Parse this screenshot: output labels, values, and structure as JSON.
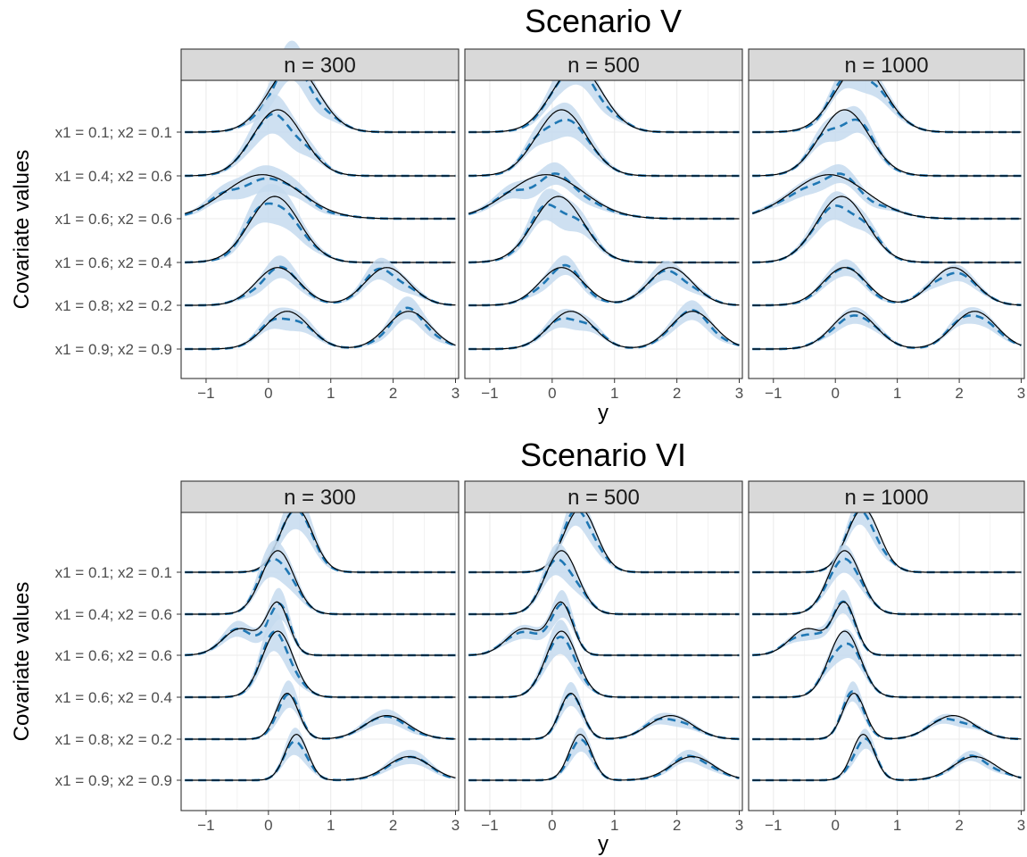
{
  "chart_data": [
    {
      "type": "area",
      "title": "Scenario V",
      "xlabel": "y",
      "ylabel": "Covariate values",
      "xlim": [
        -1.4,
        3.05
      ],
      "xticks": [
        -1,
        0,
        1,
        2,
        3
      ],
      "xtick_labels": [
        "−1",
        "0",
        "1",
        "2",
        "3"
      ],
      "panels": [
        "n = 300",
        "n = 500",
        "n = 1000"
      ],
      "rows": [
        "x1 = 0.1; x2 = 0.1",
        "x1 = 0.4; x2 = 0.6",
        "x1 = 0.6; x2 = 0.6",
        "x1 = 0.6; x2 = 0.4",
        "x1 = 0.8; x2 = 0.2",
        "x1 = 0.9; x2 = 0.9"
      ],
      "grid": true,
      "series": [
        {
          "style": "solid black",
          "description": "true density"
        },
        {
          "style": "dashed blue",
          "description": "posterior mean"
        },
        {
          "style": "light blue band",
          "description": "credible band"
        }
      ],
      "densities": [
        {
          "components": [
            [
              1.0,
              0.4,
              0.4
            ]
          ]
        },
        {
          "components": [
            [
              1.0,
              0.15,
              0.4
            ]
          ]
        },
        {
          "components": [
            [
              1.0,
              -0.1,
              0.6
            ]
          ]
        },
        {
          "components": [
            [
              1.0,
              0.1,
              0.4
            ]
          ]
        },
        {
          "components": [
            [
              0.5,
              0.15,
              0.35
            ],
            [
              0.5,
              1.9,
              0.35
            ]
          ]
        },
        {
          "components": [
            [
              0.5,
              0.3,
              0.35
            ],
            [
              0.5,
              2.25,
              0.35
            ]
          ]
        }
      ]
    },
    {
      "type": "area",
      "title": "Scenario VI",
      "xlabel": "y",
      "ylabel": "Covariate values",
      "xlim": [
        -1.4,
        3.05
      ],
      "xticks": [
        -1,
        0,
        1,
        2,
        3
      ],
      "xtick_labels": [
        "−1",
        "0",
        "1",
        "2",
        "3"
      ],
      "panels": [
        "n = 300",
        "n = 500",
        "n = 1000"
      ],
      "rows": [
        "x1 = 0.1; x2 = 0.1",
        "x1 = 0.4; x2 = 0.6",
        "x1 = 0.6; x2 = 0.6",
        "x1 = 0.6; x2 = 0.4",
        "x1 = 0.8; x2 = 0.2",
        "x1 = 0.9; x2 = 0.9"
      ],
      "grid": true,
      "series": [
        {
          "style": "solid black",
          "description": "true density"
        },
        {
          "style": "dashed blue",
          "description": "posterior mean"
        },
        {
          "style": "light blue band",
          "description": "credible band"
        }
      ],
      "densities": [
        {
          "components": [
            [
              1.0,
              0.45,
              0.26
            ]
          ]
        },
        {
          "components": [
            [
              1.0,
              0.15,
              0.26
            ]
          ]
        },
        {
          "components": [
            [
              0.45,
              -0.45,
              0.28
            ],
            [
              0.55,
              0.15,
              0.18
            ]
          ]
        },
        {
          "components": [
            [
              1.0,
              0.15,
              0.25
            ]
          ]
        },
        {
          "components": [
            [
              0.5,
              0.3,
              0.18
            ],
            [
              0.5,
              1.9,
              0.35
            ]
          ]
        },
        {
          "components": [
            [
              0.5,
              0.45,
              0.18
            ],
            [
              0.5,
              2.25,
              0.35
            ]
          ]
        }
      ]
    }
  ]
}
